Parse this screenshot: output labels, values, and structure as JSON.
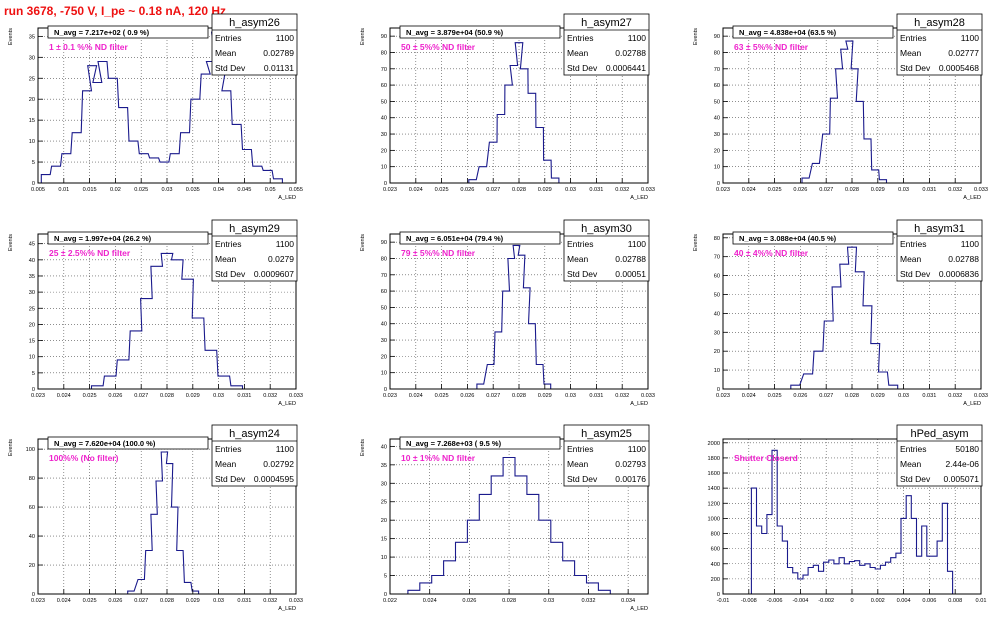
{
  "run_title": "run 3678,  -750 V, I_pe ~ 0.18 nA, 120 Hz",
  "colors": {
    "line": "#1a1a8c",
    "annotation": "#ee22cc",
    "title": "#ee1111",
    "frame": "#000000",
    "grid": "#000000"
  },
  "stats_labels": {
    "entries": "Entries",
    "mean": "Mean",
    "std": "Std Dev"
  },
  "chart_data": [
    {
      "type": "histogram",
      "name": "h_asym26",
      "navg": "N_avg = 7.217e+02 ( 0.9 %)",
      "note": "1 ± 0.1 %% ND filter",
      "stats": {
        "entries": "1100",
        "mean": "0.02789",
        "std": "0.01131"
      },
      "xlabel": "A_LED",
      "ylabel": "Events",
      "xlim": [
        0.005,
        0.055
      ],
      "ylim": [
        0,
        37
      ],
      "xticks": [
        0.005,
        0.01,
        0.015,
        0.02,
        0.025,
        0.03,
        0.035,
        0.04,
        0.045,
        0.05,
        0.055
      ],
      "xtick_labels": [
        "0.005",
        "0.01",
        "0.015",
        "0.02",
        "0.025",
        "0.03",
        "0.035",
        "0.04",
        "0.045",
        "0.05",
        "0.055"
      ],
      "yticks": [
        0,
        5,
        10,
        15,
        20,
        25,
        30,
        35
      ],
      "x": [
        0.0065,
        0.0085,
        0.0105,
        0.0125,
        0.0145,
        0.0155,
        0.0165,
        0.0175,
        0.0195,
        0.0215,
        0.0235,
        0.0255,
        0.0275,
        0.0295,
        0.0315,
        0.0335,
        0.0355,
        0.0375,
        0.0385,
        0.0395,
        0.0405,
        0.0415,
        0.0435,
        0.0455,
        0.0475,
        0.0495,
        0.0515
      ],
      "y": [
        2,
        4,
        7,
        12,
        22,
        28,
        24,
        29,
        25,
        18,
        10,
        7,
        6,
        5,
        7,
        12,
        20,
        26,
        29,
        36,
        27,
        22,
        14,
        8,
        4,
        3,
        1
      ]
    },
    {
      "type": "histogram",
      "name": "h_asym27",
      "navg": "N_avg = 3.879e+04 (50.9 %)",
      "note": "50 ± 5%% ND filter",
      "stats": {
        "entries": "1100",
        "mean": "0.02788",
        "std": "0.0006441"
      },
      "xlabel": "A_LED",
      "ylabel": "Events",
      "xlim": [
        0.023,
        0.033
      ],
      "ylim": [
        0,
        95
      ],
      "xticks": [
        0.023,
        0.024,
        0.025,
        0.026,
        0.027,
        0.028,
        0.029,
        0.03,
        0.031,
        0.032,
        0.033
      ],
      "xtick_labels": [
        "0.023",
        "0.024",
        "0.025",
        "0.026",
        "0.027",
        "0.028",
        "0.029",
        "0.03",
        "0.031",
        "0.032",
        "0.033"
      ],
      "yticks": [
        0,
        10,
        20,
        30,
        40,
        50,
        60,
        70,
        80,
        90
      ],
      "x": [
        0.0262,
        0.0266,
        0.027,
        0.0273,
        0.0276,
        0.0278,
        0.028,
        0.0282,
        0.0285,
        0.0288,
        0.0291,
        0.0294
      ],
      "y": [
        2,
        10,
        25,
        42,
        60,
        72,
        86,
        70,
        55,
        34,
        14,
        3
      ]
    },
    {
      "type": "histogram",
      "name": "h_asym28",
      "navg": "N_avg = 4.838e+04 (63.5 %)",
      "note": "63 ± 5%% ND filter",
      "stats": {
        "entries": "1100",
        "mean": "0.02777",
        "std": "0.0005468"
      },
      "xlabel": "A_LED",
      "ylabel": "Events",
      "xlim": [
        0.023,
        0.033
      ],
      "ylim": [
        0,
        95
      ],
      "xticks": [
        0.023,
        0.024,
        0.025,
        0.026,
        0.027,
        0.028,
        0.029,
        0.03,
        0.031,
        0.032,
        0.033
      ],
      "xtick_labels": [
        "0.023",
        "0.024",
        "0.025",
        "0.026",
        "0.027",
        "0.028",
        "0.029",
        "0.03",
        "0.031",
        "0.032",
        "0.033"
      ],
      "yticks": [
        0,
        10,
        20,
        30,
        40,
        50,
        60,
        70,
        80,
        90
      ],
      "x": [
        0.0262,
        0.0266,
        0.027,
        0.0273,
        0.0275,
        0.0277,
        0.0279,
        0.0281,
        0.0283,
        0.0286,
        0.0289,
        0.0292
      ],
      "y": [
        3,
        12,
        30,
        52,
        70,
        82,
        87,
        70,
        50,
        27,
        8,
        2
      ]
    },
    {
      "type": "histogram",
      "name": "h_asym29",
      "navg": "N_avg = 1.997e+04 (26.2 %)",
      "note": "25 ± 2.5%% ND filter",
      "stats": {
        "entries": "1100",
        "mean": "0.0279",
        "std": "0.0009607"
      },
      "xlabel": "A_LED",
      "ylabel": "Events",
      "xlim": [
        0.023,
        0.033
      ],
      "ylim": [
        0,
        48
      ],
      "xticks": [
        0.023,
        0.024,
        0.025,
        0.026,
        0.027,
        0.028,
        0.029,
        0.03,
        0.031,
        0.032,
        0.033
      ],
      "xtick_labels": [
        "0.023",
        "0.024",
        "0.025",
        "0.026",
        "0.027",
        "0.028",
        "0.029",
        "0.03",
        "0.031",
        "0.032",
        "0.033"
      ],
      "yticks": [
        0,
        5,
        10,
        15,
        20,
        25,
        30,
        35,
        40,
        45
      ],
      "x": [
        0.0253,
        0.0258,
        0.0263,
        0.0268,
        0.0272,
        0.0276,
        0.028,
        0.0284,
        0.0288,
        0.0292,
        0.0297,
        0.0302,
        0.0307
      ],
      "y": [
        1,
        4,
        9,
        18,
        28,
        38,
        42,
        40,
        34,
        22,
        12,
        4,
        1
      ]
    },
    {
      "type": "histogram",
      "name": "h_asym30",
      "navg": "N_avg = 6.051e+04 (79.4 %)",
      "note": "79 ± 5%% ND filter",
      "stats": {
        "entries": "1100",
        "mean": "0.02788",
        "std": "0.00051"
      },
      "xlabel": "A_LED",
      "ylabel": "Events",
      "xlim": [
        0.023,
        0.033
      ],
      "ylim": [
        0,
        95
      ],
      "xticks": [
        0.023,
        0.024,
        0.025,
        0.026,
        0.027,
        0.028,
        0.029,
        0.03,
        0.031,
        0.032,
        0.033
      ],
      "xtick_labels": [
        "0.023",
        "0.024",
        "0.025",
        "0.026",
        "0.027",
        "0.028",
        "0.029",
        "0.03",
        "0.031",
        "0.032",
        "0.033"
      ],
      "yticks": [
        0,
        10,
        20,
        30,
        40,
        50,
        60,
        70,
        80,
        90
      ],
      "x": [
        0.0265,
        0.0269,
        0.0272,
        0.0275,
        0.0277,
        0.0279,
        0.0281,
        0.0283,
        0.0285,
        0.0288,
        0.0291
      ],
      "y": [
        3,
        15,
        35,
        60,
        80,
        88,
        82,
        62,
        40,
        15,
        3
      ]
    },
    {
      "type": "histogram",
      "name": "h_asym31",
      "navg": "N_avg = 3.088e+04 (40.5 %)",
      "note": "40 ± 4%% ND filter",
      "stats": {
        "entries": "1100",
        "mean": "0.02788",
        "std": "0.0006836"
      },
      "xlabel": "A_LED",
      "ylabel": "Events",
      "xlim": [
        0.023,
        0.033
      ],
      "ylim": [
        0,
        82
      ],
      "xticks": [
        0.023,
        0.024,
        0.025,
        0.026,
        0.027,
        0.028,
        0.029,
        0.03,
        0.031,
        0.032,
        0.033
      ],
      "xtick_labels": [
        "0.023",
        "0.024",
        "0.025",
        "0.026",
        "0.027",
        "0.028",
        "0.029",
        "0.03",
        "0.031",
        "0.032",
        "0.033"
      ],
      "yticks": [
        0,
        10,
        20,
        30,
        40,
        50,
        60,
        70,
        80
      ],
      "x": [
        0.0258,
        0.0263,
        0.0267,
        0.0271,
        0.0274,
        0.0277,
        0.028,
        0.0283,
        0.0286,
        0.0289,
        0.0292,
        0.0296
      ],
      "y": [
        2,
        8,
        20,
        36,
        54,
        66,
        75,
        62,
        44,
        24,
        9,
        2
      ]
    },
    {
      "type": "histogram",
      "name": "h_asym24",
      "navg": "N_avg = 7.620e+04 (100.0 %)",
      "note": "100%% (No filter)",
      "stats": {
        "entries": "1100",
        "mean": "0.02792",
        "std": "0.0004595"
      },
      "xlabel": "A_LED",
      "ylabel": "Events",
      "xlim": [
        0.023,
        0.033
      ],
      "ylim": [
        0,
        107
      ],
      "xticks": [
        0.023,
        0.024,
        0.025,
        0.026,
        0.027,
        0.028,
        0.029,
        0.03,
        0.031,
        0.032,
        0.033
      ],
      "xtick_labels": [
        "0.023",
        "0.024",
        "0.025",
        "0.026",
        "0.027",
        "0.028",
        "0.029",
        "0.03",
        "0.031",
        "0.032",
        "0.033"
      ],
      "yticks": [
        0,
        20,
        40,
        60,
        80,
        100
      ],
      "x": [
        0.0266,
        0.027,
        0.0273,
        0.0275,
        0.0277,
        0.0279,
        0.0281,
        0.0283,
        0.0285,
        0.0288,
        0.0291
      ],
      "y": [
        2,
        10,
        30,
        55,
        78,
        98,
        90,
        60,
        30,
        8,
        2
      ]
    },
    {
      "type": "histogram",
      "name": "h_asym25",
      "navg": "N_avg = 7.268e+03 ( 9.5 %)",
      "note": "10 ± 1%% ND filter",
      "stats": {
        "entries": "1100",
        "mean": "0.02793",
        "std": "0.00176"
      },
      "xlabel": "A_LED",
      "ylabel": "Events",
      "xlim": [
        0.022,
        0.035
      ],
      "ylim": [
        0,
        42
      ],
      "xticks": [
        0.022,
        0.024,
        0.026,
        0.028,
        0.03,
        0.032,
        0.034
      ],
      "xtick_labels": [
        "0.022",
        "0.024",
        "0.026",
        "0.028",
        "0.03",
        "0.032",
        "0.034"
      ],
      "yticks": [
        0,
        5,
        10,
        15,
        20,
        25,
        30,
        35,
        40
      ],
      "x": [
        0.0232,
        0.0238,
        0.0244,
        0.025,
        0.0256,
        0.0262,
        0.0268,
        0.0274,
        0.028,
        0.0286,
        0.0292,
        0.0298,
        0.0304,
        0.031,
        0.0316,
        0.0322,
        0.0328
      ],
      "y": [
        1,
        3,
        5,
        9,
        14,
        20,
        27,
        32,
        37,
        32,
        27,
        20,
        14,
        9,
        5,
        3,
        1
      ]
    },
    {
      "type": "histogram",
      "name": "hPed_asym",
      "navg": "",
      "note": "Shutter Closerd",
      "stats": {
        "entries": "50180",
        "mean": "2.44e-06",
        "std": "0.005071"
      },
      "xlabel": "",
      "ylabel": "",
      "xlim": [
        -0.01,
        0.01
      ],
      "ylim": [
        0,
        2050
      ],
      "xticks": [
        -0.01,
        -0.008,
        -0.006,
        -0.004,
        -0.002,
        0,
        0.002,
        0.004,
        0.006,
        0.008,
        0.01
      ],
      "xtick_labels": [
        "-0.01",
        "-0.008",
        "-0.006",
        "-0.004",
        "-0.002",
        "0",
        "0.002",
        "0.004",
        "0.006",
        "0.008",
        "0.01"
      ],
      "yticks": [
        0,
        200,
        400,
        600,
        800,
        1000,
        1200,
        1400,
        1600,
        1800,
        2000
      ],
      "x": [
        -0.008,
        -0.0076,
        -0.0072,
        -0.0068,
        -0.0064,
        -0.006,
        -0.0056,
        -0.0052,
        -0.0048,
        -0.0044,
        -0.004,
        -0.0036,
        -0.0032,
        -0.0028,
        -0.0024,
        -0.002,
        -0.0016,
        -0.0012,
        -0.0008,
        -0.0004,
        0.0,
        0.0004,
        0.0008,
        0.0012,
        0.0016,
        0.002,
        0.0024,
        0.0028,
        0.0032,
        0.0036,
        0.004,
        0.0044,
        0.0048,
        0.0052,
        0.0056,
        0.006,
        0.0064,
        0.0068,
        0.0072,
        0.0076,
        0.008
      ],
      "y": [
        0,
        1400,
        900,
        800,
        1050,
        1900,
        900,
        700,
        350,
        280,
        200,
        250,
        350,
        380,
        300,
        420,
        450,
        400,
        480,
        400,
        430,
        440,
        380,
        400,
        350,
        330,
        380,
        420,
        480,
        540,
        1000,
        1300,
        1000,
        500,
        900,
        500,
        500,
        700,
        1200,
        300,
        0
      ]
    }
  ]
}
